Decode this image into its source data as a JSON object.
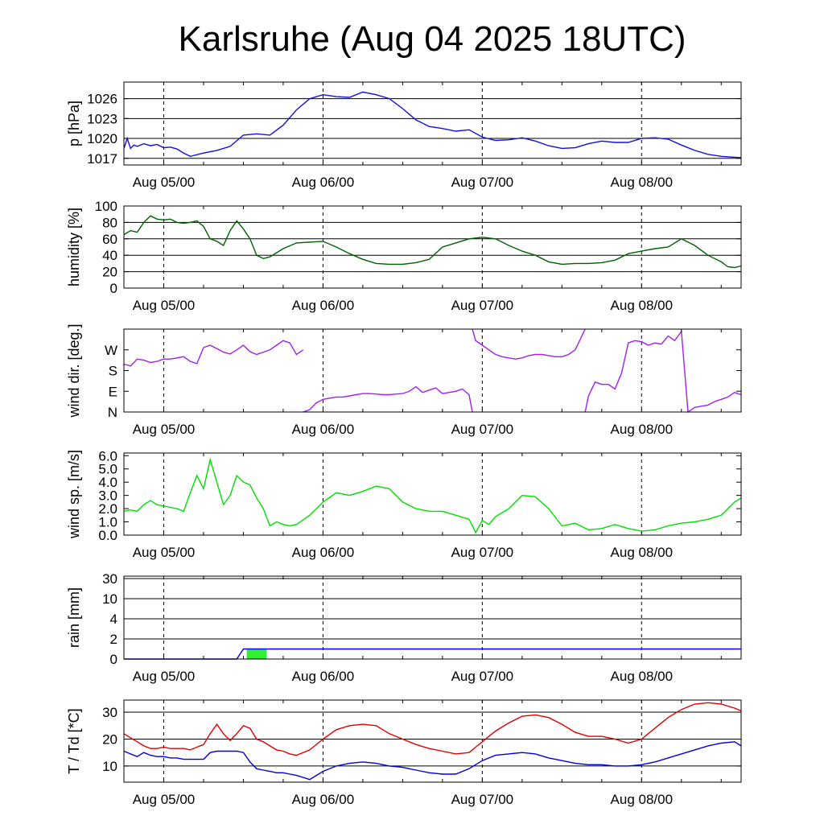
{
  "title": "Karlsruhe (Aug 04 2025 18UTC)",
  "x_tick_labels": [
    "Aug 05/00",
    "Aug 06/00",
    "Aug 07/00",
    "Aug 08/00"
  ],
  "chart_data": [
    {
      "type": "line",
      "ylabel": "p [hPa]",
      "ylim": [
        1016,
        1028.5
      ],
      "yticks": [
        1017,
        1020,
        1023,
        1026
      ],
      "ytick_labels": [
        "1017",
        "1020",
        "1023",
        "1026"
      ],
      "grid": "horizontal",
      "color": "#1010e0",
      "x_hours": [
        0,
        0.5,
        1,
        1.5,
        2,
        3,
        4,
        5,
        6,
        7,
        8,
        9,
        10,
        12,
        14,
        16,
        18,
        20,
        22,
        24,
        26,
        28,
        30,
        32,
        34,
        36,
        38,
        40,
        42,
        44,
        46,
        48,
        50,
        52,
        54,
        56,
        58,
        60,
        62,
        64,
        66,
        68,
        70,
        72,
        74,
        76,
        78,
        80,
        82,
        84,
        86,
        88,
        90,
        93
      ],
      "y": [
        1018.5,
        1020.0,
        1018.5,
        1019.0,
        1018.8,
        1019.2,
        1018.9,
        1019.1,
        1018.6,
        1018.7,
        1018.4,
        1017.8,
        1017.3,
        1017.8,
        1018.2,
        1018.8,
        1020.5,
        1020.7,
        1020.5,
        1022.0,
        1024.3,
        1026.0,
        1026.6,
        1026.3,
        1026.2,
        1027.0,
        1026.6,
        1026.0,
        1024.5,
        1022.8,
        1021.8,
        1021.5,
        1021.1,
        1021.3,
        1020.2,
        1019.7,
        1019.8,
        1020.1,
        1019.6,
        1018.9,
        1018.5,
        1018.6,
        1019.2,
        1019.6,
        1019.4,
        1019.4,
        1020.0,
        1020.1,
        1019.9,
        1019.0,
        1018.2,
        1017.6,
        1017.3,
        1017.1
      ]
    },
    {
      "type": "line",
      "ylabel": "humidity [%]",
      "ylim": [
        0,
        100
      ],
      "yticks": [
        0,
        20,
        40,
        60,
        80,
        100
      ],
      "ytick_labels": [
        "0",
        "20",
        "40",
        "60",
        "80",
        "100"
      ],
      "grid": "horizontal",
      "color": "#006000",
      "x_hours": [
        0,
        1,
        2,
        3,
        4,
        5,
        6,
        7,
        8,
        9,
        10,
        11,
        12,
        13,
        14,
        15,
        16,
        17,
        18,
        19,
        20,
        21,
        22,
        24,
        26,
        28,
        30,
        32,
        34,
        36,
        38,
        40,
        42,
        44,
        46,
        48,
        50,
        52,
        54,
        56,
        58,
        60,
        62,
        64,
        66,
        68,
        70,
        72,
        74,
        76,
        78,
        80,
        82,
        84,
        86,
        88,
        90,
        91,
        92,
        93
      ],
      "y": [
        65,
        70,
        68,
        80,
        88,
        84,
        83,
        84,
        80,
        79,
        80,
        82,
        75,
        60,
        57,
        52,
        70,
        82,
        72,
        60,
        40,
        36,
        38,
        48,
        55,
        56,
        57,
        50,
        42,
        35,
        30,
        29,
        29,
        31,
        35,
        50,
        55,
        60,
        62,
        60,
        52,
        45,
        40,
        32,
        29,
        30,
        30,
        31,
        34,
        42,
        45,
        48,
        50,
        60,
        52,
        40,
        32,
        26,
        25,
        27
      ],
      "extra_y": [
        28
      ]
    },
    {
      "type": "line",
      "ylabel": "wind dir. [deg.]",
      "ylim": [
        0,
        360
      ],
      "yticks": [
        0,
        90,
        180,
        270
      ],
      "ytick_labels": [
        "N",
        "E",
        "S",
        "W"
      ],
      "grid": "none",
      "color": "#a020f0",
      "segments": [
        {
          "x_hours": [
            0,
            1,
            2,
            3,
            4,
            5,
            6,
            7,
            8,
            9,
            10,
            11,
            12,
            13,
            14,
            15,
            16,
            17,
            18,
            19,
            20,
            21,
            22,
            23,
            24,
            25,
            26,
            27
          ],
          "y": [
            208,
            200,
            230,
            225,
            215,
            220,
            230,
            230,
            235,
            240,
            220,
            210,
            280,
            290,
            275,
            260,
            252,
            270,
            290,
            262,
            250,
            260,
            270,
            290,
            310,
            300,
            250,
            270
          ]
        },
        {
          "x_hours": [
            27,
            28,
            29,
            30,
            31,
            32,
            33,
            34,
            35,
            36,
            37,
            38,
            39,
            40,
            41,
            42,
            43,
            44,
            45,
            46,
            47,
            48,
            49,
            50,
            51,
            52,
            52.5
          ],
          "y": [
            0,
            10,
            40,
            55,
            60,
            65,
            65,
            70,
            75,
            80,
            80,
            78,
            75,
            75,
            78,
            80,
            90,
            110,
            85,
            95,
            105,
            80,
            85,
            90,
            100,
            75,
            0
          ]
        },
        {
          "x_hours": [
            52.5,
            53,
            54,
            55,
            56,
            57,
            58,
            59,
            60,
            61,
            62,
            63,
            64,
            65,
            66,
            67,
            68,
            69,
            69.5
          ],
          "y": [
            360,
            310,
            290,
            270,
            250,
            240,
            235,
            230,
            235,
            245,
            250,
            250,
            245,
            240,
            240,
            250,
            270,
            330,
            360
          ]
        },
        {
          "x_hours": [
            69.5,
            70,
            71,
            72,
            73,
            74,
            75,
            76,
            77,
            78,
            79,
            80,
            81,
            82,
            83,
            84,
            85,
            86,
            87,
            88,
            89,
            90,
            91,
            92,
            93
          ],
          "y": [
            0,
            70,
            130,
            120,
            120,
            100,
            170,
            300,
            310,
            305,
            290,
            300,
            295,
            330,
            310,
            350,
            0,
            20,
            25,
            30,
            45,
            55,
            65,
            85,
            75
          ]
        }
      ]
    },
    {
      "type": "line",
      "ylabel": "wind sp. [m/s]",
      "ylim": [
        0,
        6.2
      ],
      "yticks": [
        0,
        1,
        2,
        3,
        4,
        5,
        6
      ],
      "ytick_labels": [
        "0.0",
        "1.0",
        "2.0",
        "3.0",
        "4.0",
        "5.0",
        "6.0"
      ],
      "grid": "none",
      "color": "#00e000",
      "x_hours": [
        0,
        1,
        2,
        3,
        4,
        5,
        6,
        7,
        8,
        9,
        10,
        11,
        12,
        13,
        14,
        15,
        16,
        17,
        18,
        19,
        20,
        21,
        22,
        23,
        24,
        25,
        26,
        28,
        30,
        32,
        34,
        36,
        38,
        40,
        42,
        44,
        46,
        48,
        50,
        52,
        53,
        54,
        55,
        56,
        58,
        60,
        62,
        64,
        66,
        68,
        70,
        72,
        74,
        76,
        78,
        80,
        82,
        84,
        86,
        88,
        90,
        92,
        93
      ],
      "y": [
        1.8,
        1.9,
        1.8,
        2.3,
        2.6,
        2.3,
        2.2,
        2.1,
        2.0,
        1.8,
        3.2,
        4.5,
        3.5,
        5.7,
        4.0,
        2.3,
        3.0,
        4.5,
        4.0,
        3.8,
        2.8,
        2.0,
        0.7,
        1.0,
        0.8,
        0.7,
        0.8,
        1.5,
        2.5,
        3.2,
        3.0,
        3.3,
        3.7,
        3.5,
        2.5,
        2.0,
        1.8,
        1.8,
        1.5,
        1.2,
        0.2,
        1.1,
        0.8,
        1.4,
        2.0,
        3.0,
        2.9,
        2.0,
        0.7,
        0.9,
        0.4,
        0.5,
        0.8,
        0.5,
        0.3,
        0.4,
        0.7,
        0.9,
        1.0,
        1.2,
        1.5,
        2.5,
        2.8
      ]
    },
    {
      "type": "area",
      "ylabel": "rain [mm]",
      "yticks": [
        0,
        2,
        4,
        10,
        30
      ],
      "ytick_labels": [
        "0",
        "2",
        "4",
        "10",
        "30"
      ],
      "scale": "nonlinear",
      "grid": "horizontal",
      "color": "#0000ff",
      "bar_color": "#33ee33",
      "x_hours": [
        0,
        17,
        18,
        93
      ],
      "y": [
        0,
        0,
        1,
        1
      ],
      "bars": [
        {
          "x_start": 18.5,
          "x_end": 21.5,
          "value": 1
        }
      ]
    },
    {
      "type": "line",
      "ylabel": "T / Td [*C]",
      "ylim": [
        4,
        34.5
      ],
      "yticks": [
        10,
        20,
        30
      ],
      "ytick_labels": [
        "10",
        "20",
        "30"
      ],
      "grid": "horizontal",
      "series": [
        {
          "color": "#e00000",
          "x_hours": [
            0,
            1,
            2,
            3,
            4,
            5,
            6,
            7,
            8,
            9,
            10,
            11,
            12,
            13,
            14,
            15,
            16,
            17,
            18,
            19,
            20,
            21,
            22,
            23,
            24,
            25,
            26,
            28,
            30,
            32,
            34,
            36,
            38,
            40,
            42,
            44,
            46,
            48,
            50,
            52,
            53,
            54,
            55,
            56,
            58,
            60,
            62,
            64,
            66,
            68,
            70,
            72,
            74,
            76,
            78,
            80,
            82,
            84,
            86,
            88,
            90,
            92,
            93
          ],
          "y": [
            22,
            20.5,
            19,
            17.5,
            16.5,
            16.5,
            17,
            16.5,
            16.5,
            16.5,
            16,
            17,
            18,
            22,
            25.5,
            22,
            19.5,
            22,
            25,
            24,
            20,
            19,
            17.5,
            16,
            15.5,
            14.5,
            14,
            16,
            20,
            23.5,
            25,
            25.5,
            25,
            22,
            20,
            18,
            16.5,
            15.5,
            14.5,
            15,
            17,
            19,
            21,
            23,
            26,
            28.5,
            29,
            28,
            25.5,
            22.5,
            21,
            21,
            20,
            18.5,
            20,
            24,
            28,
            31,
            33,
            33.5,
            33,
            31.5,
            30.5
          ]
        },
        {
          "color": "#0000e0",
          "x_hours": [
            0,
            1,
            2,
            3,
            4,
            5,
            6,
            7,
            8,
            9,
            10,
            11,
            12,
            13,
            14,
            15,
            16,
            17,
            18,
            19,
            20,
            21,
            22,
            23,
            24,
            25,
            26,
            28,
            30,
            32,
            34,
            36,
            38,
            40,
            42,
            44,
            46,
            48,
            50,
            52,
            54,
            56,
            58,
            60,
            62,
            64,
            66,
            68,
            70,
            72,
            74,
            76,
            78,
            80,
            82,
            84,
            86,
            88,
            90,
            92,
            93
          ],
          "y": [
            15.5,
            14.5,
            13.5,
            15,
            14,
            13.5,
            13.5,
            13,
            13,
            12.5,
            12.5,
            12.5,
            12.5,
            15,
            15.5,
            15.5,
            15.5,
            15.5,
            15,
            11.5,
            9,
            8.5,
            8,
            7.5,
            7.5,
            7,
            6.5,
            5,
            8,
            10,
            11,
            11.5,
            11,
            10,
            9.5,
            8.5,
            7.5,
            7,
            7,
            9,
            12,
            14,
            14.5,
            15,
            14.5,
            13,
            12,
            11,
            10.5,
            10.5,
            10,
            10,
            10.5,
            11.5,
            13,
            14.5,
            16,
            17.5,
            18.5,
            19,
            17.5
          ]
        }
      ]
    }
  ]
}
